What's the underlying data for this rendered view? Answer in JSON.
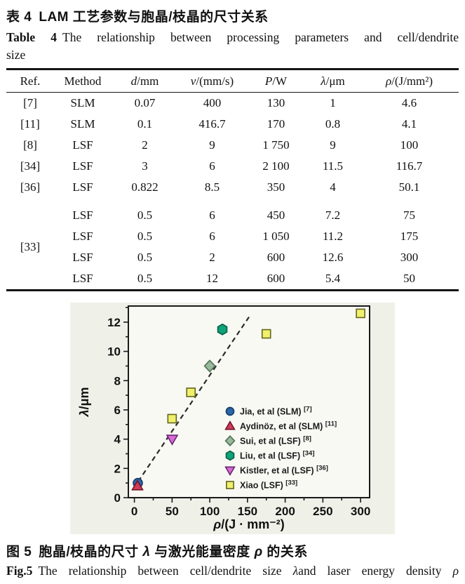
{
  "titles": {
    "zh_label": "表 4",
    "zh_text": "LAM 工艺参数与胞晶/枝晶的尺寸关系",
    "en_label": "Table 4",
    "en_text": "The relationship between processing parameters and cell/dendrite",
    "en_line2": "size"
  },
  "table": {
    "headers": [
      {
        "var": "",
        "rest": "Ref."
      },
      {
        "var": "",
        "rest": "Method"
      },
      {
        "var": "d",
        "rest": "/mm"
      },
      {
        "var": "v",
        "rest": "/(mm/s)"
      },
      {
        "var": "P",
        "rest": "/W"
      },
      {
        "var": "λ",
        "rest": "/μm"
      },
      {
        "var": "ρ",
        "rest": "/(J/mm²)"
      }
    ],
    "rows": [
      {
        "ref": "[7]",
        "refspan": 1,
        "cells": [
          "SLM",
          "0.07",
          "400",
          "130",
          "1",
          "4.6"
        ]
      },
      {
        "ref": "[11]",
        "refspan": 1,
        "cells": [
          "SLM",
          "0.1",
          "416.7",
          "170",
          "0.8",
          "4.1"
        ]
      },
      {
        "ref": "[8]",
        "refspan": 1,
        "cells": [
          "LSF",
          "2",
          "9",
          "1 750",
          "9",
          "100"
        ]
      },
      {
        "ref": "[34]",
        "refspan": 1,
        "cells": [
          "LSF",
          "3",
          "6",
          "2 100",
          "11.5",
          "116.7"
        ]
      },
      {
        "ref": "[36]",
        "refspan": 1,
        "cells": [
          "LSF",
          "0.822",
          "8.5",
          "350",
          "4",
          "50.1"
        ]
      },
      {
        "ref": "[33]",
        "refspan": 4,
        "cells": [
          "LSF",
          "0.5",
          "6",
          "450",
          "7.2",
          "75"
        ],
        "group_start": true
      },
      {
        "ref": null,
        "refspan": 0,
        "cells": [
          "LSF",
          "0.5",
          "6",
          "1 050",
          "11.2",
          "175"
        ]
      },
      {
        "ref": null,
        "refspan": 0,
        "cells": [
          "LSF",
          "0.5",
          "2",
          "600",
          "12.6",
          "300"
        ]
      },
      {
        "ref": null,
        "refspan": 0,
        "cells": [
          "LSF",
          "0.5",
          "12",
          "600",
          "5.4",
          "50"
        ]
      }
    ]
  },
  "chart_data": {
    "type": "scatter",
    "xlabel_var": "ρ",
    "xlabel_rest": "/(J · mm⁻²)",
    "ylabel_var": "λ",
    "ylabel_rest": "/μm",
    "xlim": [
      -8,
      312
    ],
    "ylim": [
      0,
      13.1
    ],
    "x_ticks": [
      0,
      50,
      100,
      150,
      200,
      250,
      300
    ],
    "y_ticks": [
      0,
      2,
      4,
      6,
      8,
      10,
      12
    ],
    "x_minor_step": 25,
    "y_minor_step": 1,
    "grid": false,
    "legend_position": "inside-right-bottom",
    "trend_line": {
      "style": "dashed",
      "from": [
        5,
        1.1
      ],
      "to": [
        152,
        12.35
      ],
      "color": "#2a2a2a"
    },
    "series": [
      {
        "name": "Jia, et al (SLM)",
        "ref": "[7]",
        "marker": "circle",
        "fill": "#2d66a5",
        "stroke": "#143a68",
        "points": [
          [
            4.6,
            1
          ]
        ]
      },
      {
        "name": "Aydinöz, et al (SLM)",
        "ref": "[11]",
        "marker": "triangle-up",
        "fill": "#d23b58",
        "stroke": "#751327",
        "points": [
          [
            4.1,
            0.8
          ]
        ]
      },
      {
        "name": "Sui, et al (LSF)",
        "ref": "[8]",
        "marker": "diamond",
        "fill": "#9ab89e",
        "stroke": "#4d7055",
        "points": [
          [
            100,
            9
          ]
        ]
      },
      {
        "name": "Liu, et al (LSF)",
        "ref": "[34]",
        "marker": "hexagon",
        "fill": "#10a377",
        "stroke": "#055c44",
        "points": [
          [
            116.7,
            11.5
          ]
        ]
      },
      {
        "name": "Kistler, et al (LSF)",
        "ref": "[36]",
        "marker": "triangle-down",
        "fill": "#d96ad6",
        "stroke": "#682470",
        "points": [
          [
            50.1,
            4
          ]
        ]
      },
      {
        "name": "Xiao (LSF)",
        "ref": "[33]",
        "marker": "square",
        "fill": "#eff06c",
        "stroke": "#66641e",
        "points": [
          [
            75,
            7.2
          ],
          [
            175,
            11.2
          ],
          [
            300,
            12.6
          ],
          [
            50,
            5.4
          ]
        ]
      }
    ],
    "colors": {
      "plot_bg": "#f8f9f3",
      "figure_bg": "#eff1e9",
      "axis": "#1a1a1a",
      "text": "#111111"
    }
  },
  "figure_captions": {
    "zh_label": "图 5",
    "zh_seg1": "胞晶/枝晶的尺寸 ",
    "zh_var1": "λ",
    "zh_seg2": " 与激光能量密度 ",
    "zh_var2": "ρ",
    "zh_seg3": " 的关系",
    "en_label": "Fig.5",
    "en_seg1": "The relationship between cell/dendrite size ",
    "en_var1": "λ",
    "en_seg2": "and laser energy density ",
    "en_var2": "ρ"
  }
}
